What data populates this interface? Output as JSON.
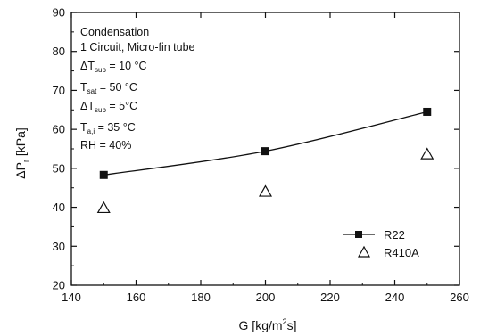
{
  "chart_data": {
    "type": "scatter",
    "xlabel": "G [kg/m²s]",
    "ylabel": "ΔP_r [kPa]",
    "xlim": [
      140,
      260
    ],
    "ylim": [
      20,
      90
    ],
    "x_ticks": [
      "140",
      "160",
      "180",
      "200",
      "220",
      "240",
      "260"
    ],
    "y_ticks": [
      "20",
      "30",
      "40",
      "50",
      "60",
      "70",
      "80",
      "90"
    ],
    "grid": false,
    "legend": "bottom-right",
    "series": [
      {
        "name": "R22",
        "marker": "filled-square",
        "line": true,
        "color": "#111111",
        "x": [
          150,
          200,
          250
        ],
        "y": [
          48.3,
          54.4,
          64.5
        ]
      },
      {
        "name": "R410A",
        "marker": "open-triangle",
        "line": false,
        "color": "#111111",
        "x": [
          150,
          200,
          250
        ],
        "y": [
          39.8,
          44.0,
          53.6
        ]
      }
    ],
    "annotations": {
      "line1": "Condensation",
      "line2": "1 Circuit, Micro-fin tube",
      "dTsup": {
        "symbol": "ΔT",
        "sub": "sup",
        "rest": " = 10 °C"
      },
      "Tsat": {
        "symbol": "T",
        "sub": "sat",
        "rest": " = 50 °C"
      },
      "dTsub": {
        "symbol": "ΔT",
        "sub": "sub",
        "rest": " = 5°C"
      },
      "Tai": {
        "symbol": "T",
        "sub": "a,i",
        "rest": " = 35 °C"
      },
      "rh": "RH = 40%"
    }
  }
}
